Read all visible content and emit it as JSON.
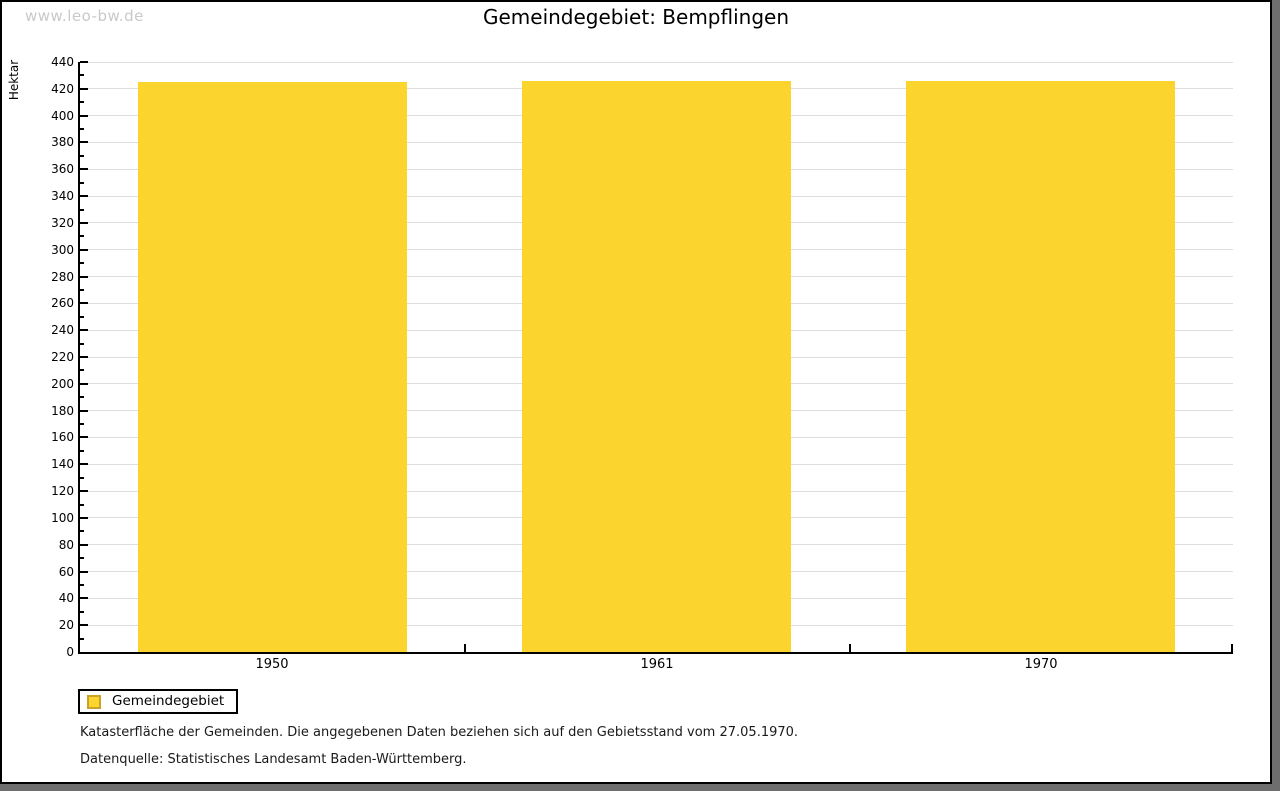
{
  "watermark": "www.leo-bw.de",
  "chart_data": {
    "type": "bar",
    "title": "Gemeindegebiet: Bempflingen",
    "ylabel": "Hektar",
    "xlabel": "",
    "categories": [
      "1950",
      "1961",
      "1970"
    ],
    "series": [
      {
        "name": "Gemeindegebiet",
        "values": [
          425,
          426,
          426
        ]
      }
    ],
    "ylim": [
      0,
      440
    ],
    "ytick_step": 20,
    "yminor_step": 10,
    "grid": true,
    "legend_position": "bottom-left",
    "colors": {
      "bar": "#FCD42E",
      "legend_swatch_border": "#C9A227",
      "gridline": "#DDDDDD",
      "axis": "#000000",
      "watermark": "#C9C9C9",
      "frame_shadow": "#6E6E6E"
    }
  },
  "footnotes": [
    "Katasterfläche der Gemeinden. Die angegebenen Daten beziehen sich auf den Gebietsstand vom 27.05.1970.",
    "Datenquelle: Statistisches Landesamt Baden-Württemberg."
  ]
}
